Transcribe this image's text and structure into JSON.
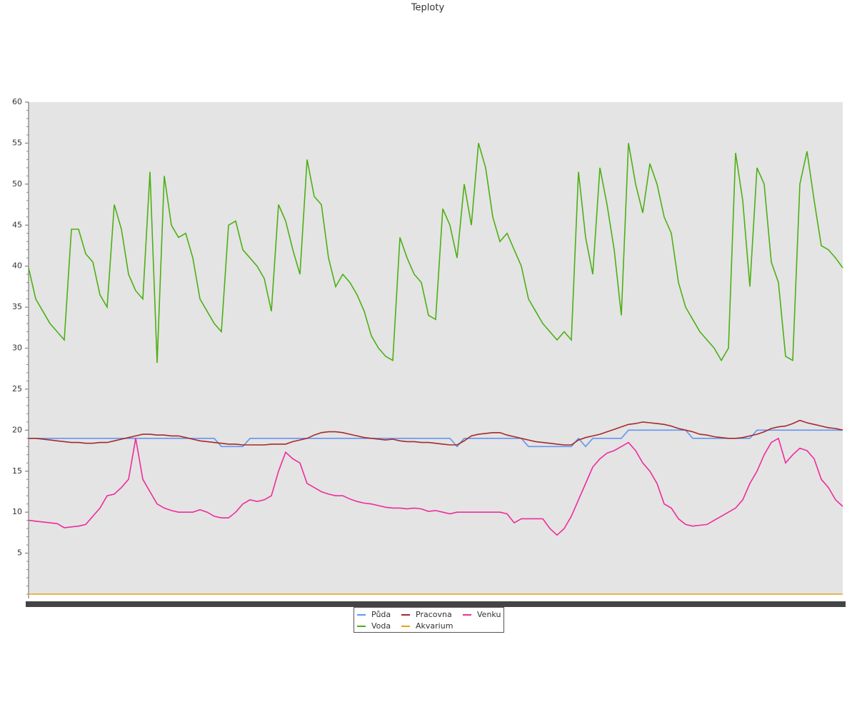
{
  "chart_data": {
    "type": "line",
    "title": "Teploty",
    "categories": [
      null,
      null,
      null,
      null,
      null,
      null,
      null,
      null,
      null,
      null,
      null,
      null,
      null,
      null,
      null,
      null,
      null,
      null,
      null,
      null,
      null,
      null,
      null,
      null,
      null,
      null,
      null,
      null,
      null,
      null,
      null,
      null,
      null,
      null,
      null,
      null,
      null,
      null,
      null,
      null,
      null,
      null,
      null,
      null,
      null,
      null,
      null,
      null,
      null,
      null,
      null,
      null,
      null,
      null,
      null,
      null,
      null,
      null,
      null,
      null,
      null,
      null,
      null,
      null,
      null,
      null,
      null,
      null,
      null,
      null,
      null,
      null,
      null,
      null,
      null,
      null,
      null,
      null,
      null,
      null,
      null,
      null,
      null,
      null,
      null,
      null,
      null,
      null,
      null,
      null,
      null,
      null,
      null,
      null,
      null,
      null,
      null,
      null,
      null,
      null,
      null,
      null,
      null,
      null,
      null,
      null,
      null,
      null,
      null,
      null,
      null,
      null,
      null,
      null,
      null
    ],
    "ylim": [
      0,
      60
    ],
    "yticks": [
      5,
      10,
      15,
      20,
      25,
      30,
      35,
      40,
      45,
      50,
      55,
      60
    ],
    "series": [
      {
        "name": "Půda",
        "color": "#6495ed",
        "values": [
          19,
          19,
          19,
          19,
          19,
          19,
          19,
          19,
          19,
          19,
          19,
          19,
          19,
          19,
          19,
          19,
          19,
          19,
          19,
          19,
          19,
          19,
          19,
          19,
          19,
          19,
          19,
          18,
          18,
          18,
          18,
          19,
          19,
          19,
          19,
          19,
          19,
          19,
          19,
          19,
          19,
          19,
          19,
          19,
          19,
          19,
          19,
          19,
          19,
          19,
          19,
          19,
          19,
          19,
          19,
          19,
          19,
          19,
          19,
          19,
          18,
          19,
          19,
          19,
          19,
          19,
          19,
          19,
          19,
          19,
          18,
          18,
          18,
          18,
          18,
          18,
          18,
          19,
          18,
          19,
          19,
          19,
          19,
          19,
          20,
          20,
          20,
          20,
          20,
          20,
          20,
          20,
          20,
          19,
          19,
          19,
          19,
          19,
          19,
          19,
          19,
          19,
          20,
          20,
          20,
          20,
          20,
          20,
          20,
          20,
          20,
          20,
          20,
          20,
          20
        ]
      },
      {
        "name": "Voda",
        "color": "#4cb014",
        "values": [
          39.8,
          36,
          34.5,
          33,
          32,
          31,
          44.5,
          44.5,
          41.5,
          40.5,
          36.5,
          35,
          47.5,
          44.5,
          39,
          37,
          36,
          51.5,
          28.2,
          51,
          45,
          43.5,
          44,
          41,
          36,
          34.5,
          33,
          32,
          45,
          45.5,
          42,
          41,
          40,
          38.5,
          34.5,
          47.5,
          45.5,
          42,
          39,
          53,
          48.5,
          47.5,
          41,
          37.5,
          39,
          38,
          36.5,
          34.5,
          31.5,
          30,
          29,
          28.5,
          43.5,
          41,
          39,
          38,
          34,
          33.5,
          47,
          45,
          41,
          50,
          45,
          55,
          52,
          46,
          43,
          44,
          42,
          40,
          36,
          34.5,
          33,
          32,
          31,
          32,
          31,
          51.5,
          43.5,
          39,
          52,
          47.5,
          42,
          34,
          55,
          50,
          46.5,
          52.5,
          50,
          46,
          44,
          38,
          35,
          33.5,
          32,
          31,
          30,
          28.5,
          30,
          53.8,
          48,
          37.5,
          52,
          50,
          40.5,
          38,
          29,
          28.5,
          50,
          54,
          48,
          42.5,
          42,
          41,
          39.8
        ]
      },
      {
        "name": "Pracovna",
        "color": "#a52a2a",
        "values": [
          19,
          19,
          18.9,
          18.8,
          18.7,
          18.6,
          18.5,
          18.5,
          18.4,
          18.4,
          18.5,
          18.5,
          18.7,
          18.9,
          19.1,
          19.3,
          19.5,
          19.5,
          19.4,
          19.4,
          19.3,
          19.3,
          19.1,
          18.9,
          18.7,
          18.6,
          18.5,
          18.4,
          18.3,
          18.3,
          18.2,
          18.2,
          18.2,
          18.2,
          18.3,
          18.3,
          18.3,
          18.6,
          18.8,
          19,
          19.4,
          19.7,
          19.8,
          19.8,
          19.7,
          19.5,
          19.3,
          19.1,
          19,
          18.9,
          18.8,
          18.9,
          18.7,
          18.6,
          18.6,
          18.5,
          18.5,
          18.4,
          18.3,
          18.2,
          18.2,
          18.7,
          19.3,
          19.5,
          19.6,
          19.7,
          19.7,
          19.4,
          19.2,
          19,
          18.8,
          18.6,
          18.5,
          18.4,
          18.3,
          18.2,
          18.2,
          18.8,
          19.1,
          19.3,
          19.5,
          19.8,
          20.1,
          20.4,
          20.7,
          20.8,
          21,
          20.9,
          20.8,
          20.7,
          20.5,
          20.2,
          20,
          19.8,
          19.5,
          19.4,
          19.2,
          19.1,
          19,
          19,
          19.1,
          19.3,
          19.5,
          19.8,
          20.2,
          20.4,
          20.5,
          20.8,
          21.2,
          20.9,
          20.7,
          20.5,
          20.3,
          20.2,
          20
        ]
      },
      {
        "name": "Akvarium",
        "color": "#e8a317",
        "values": [
          0,
          0,
          0,
          0,
          0,
          0,
          0,
          0,
          0,
          0,
          0,
          0,
          0,
          0,
          0,
          0,
          0,
          0,
          0,
          0,
          0,
          0,
          0,
          0,
          0,
          0,
          0,
          0,
          0,
          0,
          0,
          0,
          0,
          0,
          0,
          0,
          0,
          0,
          0,
          0,
          0,
          0,
          0,
          0,
          0,
          0,
          0,
          0,
          0,
          0,
          0,
          0,
          0,
          0,
          0,
          0,
          0,
          0,
          0,
          0,
          0,
          0,
          0,
          0,
          0,
          0,
          0,
          0,
          0,
          0,
          0,
          0,
          0,
          0,
          0,
          0,
          0,
          0,
          0,
          0,
          0,
          0,
          0,
          0,
          0,
          0,
          0,
          0,
          0,
          0,
          0,
          0,
          0,
          0,
          0,
          0,
          0,
          0,
          0,
          0,
          0,
          0,
          0,
          0,
          0,
          0,
          0,
          0,
          0,
          0,
          0,
          0,
          0,
          0,
          0
        ]
      },
      {
        "name": "Venku",
        "color": "#ee2c9c",
        "values": [
          9,
          8.9,
          8.8,
          8.7,
          8.6,
          8.1,
          8.2,
          8.3,
          8.5,
          9.5,
          10.5,
          12,
          12.2,
          13,
          14,
          19,
          14,
          12.5,
          11,
          10.5,
          10.2,
          10,
          10,
          10,
          10.3,
          10,
          9.5,
          9.3,
          9.3,
          10,
          11,
          11.5,
          11.3,
          11.5,
          12,
          15,
          17.3,
          16.5,
          16,
          13.5,
          13,
          12.5,
          12.2,
          12,
          12,
          11.6,
          11.3,
          11.1,
          11,
          10.8,
          10.6,
          10.5,
          10.5,
          10.4,
          10.5,
          10.4,
          10.1,
          10.2,
          10,
          9.8,
          10,
          10,
          10,
          10,
          10,
          10,
          10,
          9.8,
          8.7,
          9.2,
          9.2,
          9.2,
          9.2,
          8,
          7.2,
          8,
          9.5,
          11.5,
          13.5,
          15.5,
          16.5,
          17.2,
          17.5,
          18,
          18.5,
          17.5,
          16,
          15,
          13.5,
          11,
          10.5,
          9.2,
          8.5,
          8.3,
          8.4,
          8.5,
          9,
          9.5,
          10,
          10.5,
          11.5,
          13.5,
          15,
          17,
          18.5,
          19,
          16,
          17,
          17.8,
          17.5,
          16.5,
          14,
          13,
          11.5,
          10.7
        ]
      }
    ]
  }
}
